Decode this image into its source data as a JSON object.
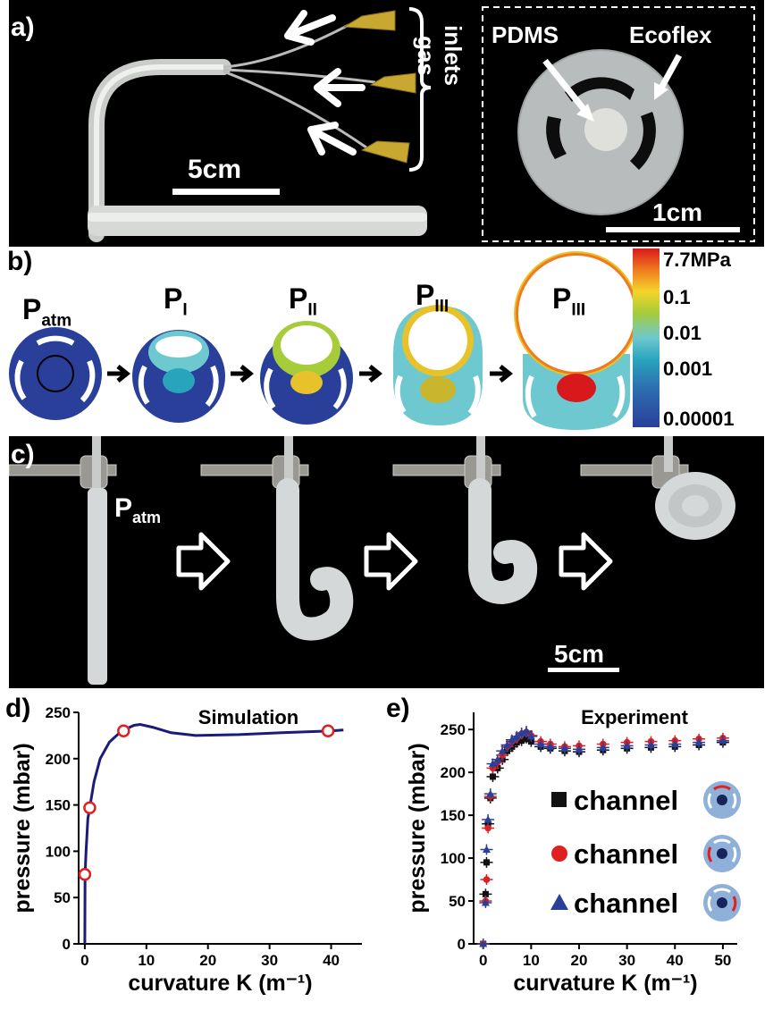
{
  "panel_a": {
    "label": "a)",
    "gas_inlets_label_1": "gas",
    "gas_inlets_label_2": "inlets",
    "scale_left": "5cm",
    "pdms_label": "PDMS",
    "ecoflex_label": "Ecoflex",
    "scale_right": "1cm"
  },
  "panel_b": {
    "label": "b)",
    "stages": [
      "P",
      "P",
      "P",
      "P",
      "P"
    ],
    "stage_subs": [
      "atm",
      "I",
      "II",
      "III",
      "III"
    ],
    "colorbar_ticks": [
      "7.7MPa",
      "0.1",
      "0.01",
      "0.001",
      "0.00001"
    ]
  },
  "panel_c": {
    "label": "c)",
    "patm_main": "P",
    "patm_sub": "atm",
    "scale": "5cm"
  },
  "chart_data": [
    {
      "type": "line",
      "panel": "d)",
      "title": "Simulation",
      "xlabel": "curvature K (m⁻¹)",
      "ylabel": "pressure (mbar)",
      "xlim": [
        -1,
        45
      ],
      "ylim": [
        0,
        250
      ],
      "xticks": [
        0,
        10,
        20,
        30,
        40
      ],
      "yticks": [
        0,
        50,
        100,
        150,
        200,
        250
      ],
      "series": [
        {
          "style": "curve",
          "x": [
            0,
            0.05,
            0.2,
            0.5,
            0.8,
            1.5,
            2.5,
            4,
            6,
            8,
            9,
            11,
            14,
            18,
            25,
            32,
            40,
            42
          ],
          "y": [
            0,
            75,
            100,
            135,
            147,
            175,
            200,
            218,
            230,
            236,
            237,
            234,
            228,
            225,
            226,
            228,
            230,
            231
          ]
        },
        {
          "style": "markers",
          "x": [
            0,
            0.8,
            6.3,
            39.5
          ],
          "y": [
            75,
            147,
            230,
            230
          ]
        }
      ]
    },
    {
      "type": "scatter",
      "panel": "e)",
      "title": "Experiment",
      "xlabel": "curvature K (m⁻¹)",
      "ylabel": "pressure (mbar)",
      "xlim": [
        -2,
        53
      ],
      "ylim": [
        0,
        270
      ],
      "xticks": [
        0,
        10,
        20,
        30,
        40,
        50
      ],
      "yticks": [
        0,
        50,
        100,
        150,
        200,
        250
      ],
      "legend": [
        "channel",
        "channel",
        "channel"
      ],
      "legend_position": "right",
      "colors": {
        "black": "#111111",
        "red": "#e02020",
        "blue": "#2a3f9a",
        "curve": "#1b1b7a"
      },
      "series": [
        {
          "marker": "square",
          "x": [
            0,
            0.5,
            0.7,
            1,
            1.5,
            2,
            3,
            4,
            5,
            6,
            7,
            8,
            9,
            10,
            12,
            14,
            17,
            20,
            25,
            30,
            35,
            40,
            45,
            50
          ],
          "y": [
            0,
            58,
            95,
            140,
            170,
            195,
            205,
            215,
            225,
            230,
            235,
            237,
            240,
            236,
            230,
            228,
            225,
            224,
            226,
            228,
            229,
            230,
            232,
            235
          ]
        },
        {
          "marker": "circle",
          "x": [
            0,
            0.5,
            0.7,
            1,
            1.5,
            2,
            3,
            4,
            5,
            6,
            7,
            8,
            9,
            10,
            12,
            14,
            17,
            20,
            25,
            30,
            35,
            40,
            45,
            50
          ],
          "y": [
            0,
            50,
            75,
            135,
            172,
            205,
            212,
            220,
            230,
            236,
            240,
            245,
            247,
            243,
            236,
            233,
            230,
            231,
            233,
            235,
            236,
            237,
            239,
            240
          ]
        },
        {
          "marker": "triangle",
          "x": [
            0,
            0.5,
            0.7,
            1,
            1.5,
            2,
            3,
            4,
            5,
            6,
            7,
            8,
            9,
            10,
            12,
            14,
            17,
            20,
            25,
            30,
            35,
            40,
            45,
            50
          ],
          "y": [
            0,
            48,
            110,
            145,
            175,
            210,
            215,
            225,
            232,
            238,
            242,
            246,
            248,
            242,
            233,
            230,
            228,
            227,
            229,
            231,
            232,
            233,
            235,
            237
          ]
        }
      ]
    }
  ]
}
